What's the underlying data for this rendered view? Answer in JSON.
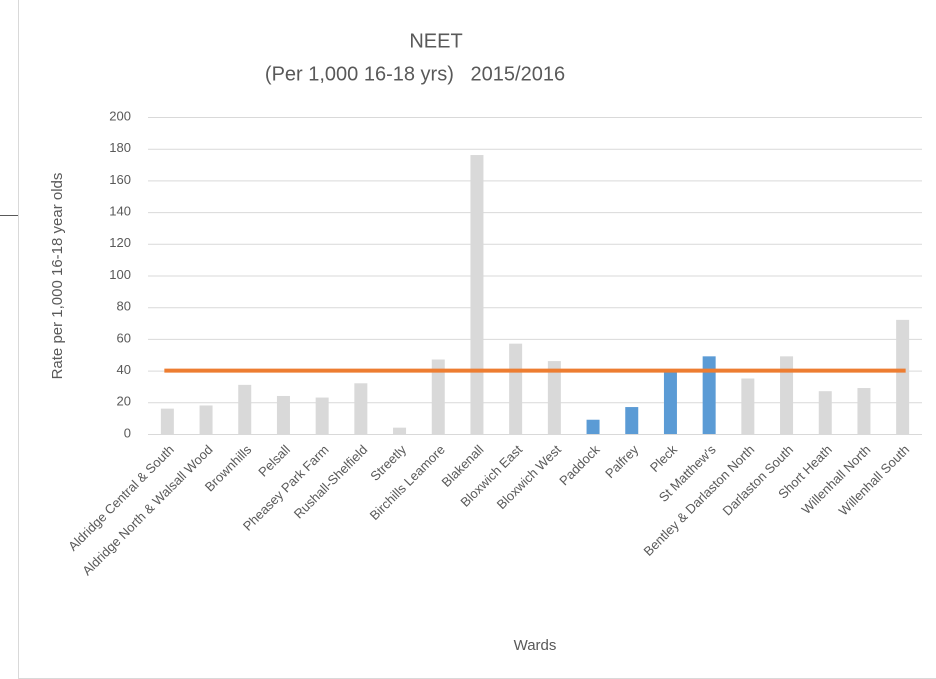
{
  "chart_data": {
    "type": "bar",
    "title": "NEET",
    "subtitle": "(Per 1,000 16-18 yrs)   2015/2016",
    "x_label": "Wards",
    "y_label": "Rate per 1,000 16-18 year olds",
    "categories": [
      "Aldridge Central & South",
      "Aldridge North & Walsall Wood",
      "Brownhills",
      "Pelsall",
      "Pheasey Park Farm",
      "Rushall-Shelfield",
      "Streetly",
      "Birchills Leamore",
      "Blakenall",
      "Bloxwich East",
      "Bloxwich West",
      "Paddock",
      "Palfrey",
      "Pleck",
      "St Matthew's",
      "Bentley & Darlaston North",
      "Darlaston South",
      "Short Heath",
      "Willenhall North",
      "Willenhall South"
    ],
    "values": [
      16,
      18,
      31,
      24,
      23,
      32,
      4,
      47,
      176,
      57,
      46,
      9,
      17,
      39,
      49,
      35,
      49,
      27,
      29,
      72
    ],
    "colors": [
      "#d9d9d9",
      "#d9d9d9",
      "#d9d9d9",
      "#d9d9d9",
      "#d9d9d9",
      "#d9d9d9",
      "#d9d9d9",
      "#d9d9d9",
      "#d9d9d9",
      "#d9d9d9",
      "#d9d9d9",
      "#5b9bd5",
      "#5b9bd5",
      "#5b9bd5",
      "#5b9bd5",
      "#d9d9d9",
      "#d9d9d9",
      "#d9d9d9",
      "#d9d9d9",
      "#d9d9d9"
    ],
    "reference_line": {
      "value": 40,
      "color": "#ed7d31"
    },
    "ylim": [
      0,
      200
    ],
    "yticks": [
      0,
      20,
      40,
      60,
      80,
      100,
      120,
      140,
      160,
      180,
      200
    ],
    "grid": true
  }
}
